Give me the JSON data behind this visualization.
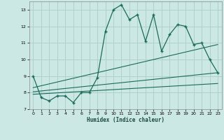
{
  "xlabel": "Humidex (Indice chaleur)",
  "xlim": [
    -0.5,
    23.5
  ],
  "ylim": [
    7,
    13.5
  ],
  "yticks": [
    7,
    8,
    9,
    10,
    11,
    12,
    13
  ],
  "xticks": [
    0,
    1,
    2,
    3,
    4,
    5,
    6,
    7,
    8,
    9,
    10,
    11,
    12,
    13,
    14,
    15,
    16,
    17,
    18,
    19,
    20,
    21,
    22,
    23
  ],
  "line_color": "#1a6b5a",
  "bg_color": "#cce8e4",
  "grid_color": "#b0d0cc",
  "main_x": [
    0,
    1,
    2,
    3,
    4,
    5,
    6,
    7,
    8,
    9,
    10,
    11,
    12,
    13,
    14,
    15,
    16,
    17,
    18,
    19,
    20,
    21,
    22,
    23
  ],
  "main_y": [
    9.0,
    7.7,
    7.5,
    7.8,
    7.8,
    7.4,
    8.0,
    8.0,
    8.9,
    11.7,
    13.0,
    13.3,
    12.4,
    12.7,
    11.1,
    12.7,
    10.5,
    11.5,
    12.1,
    12.0,
    10.9,
    11.0,
    10.0,
    9.2
  ],
  "reg_line1": [
    [
      0,
      23
    ],
    [
      8.05,
      9.2
    ]
  ],
  "reg_line2": [
    [
      0,
      23
    ],
    [
      8.3,
      10.9
    ]
  ],
  "reg_line3": [
    [
      0,
      23
    ],
    [
      7.9,
      8.55
    ]
  ]
}
